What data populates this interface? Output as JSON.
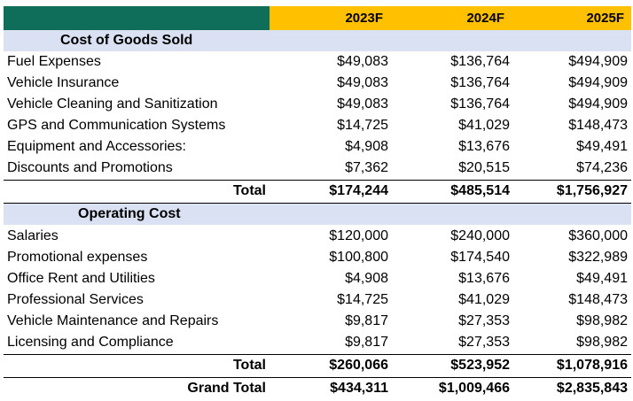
{
  "header": {
    "col1": "",
    "col2": "2023F",
    "col3": "2024F",
    "col4": "2025F"
  },
  "cogs": {
    "title": "Cost of Goods Sold",
    "rows": [
      {
        "label": "Fuel Expenses",
        "y2023": "$49,083",
        "y2024": "$136,764",
        "y2025": "$494,909"
      },
      {
        "label": "Vehicle Insurance",
        "y2023": "$49,083",
        "y2024": "$136,764",
        "y2025": "$494,909"
      },
      {
        "label": "Vehicle Cleaning and Sanitization",
        "y2023": "$49,083",
        "y2024": "$136,764",
        "y2025": "$494,909"
      },
      {
        "label": "GPS and Communication Systems",
        "y2023": "$14,725",
        "y2024": "$41,029",
        "y2025": "$148,473"
      },
      {
        "label": "Equipment and Accessories:",
        "y2023": "$4,908",
        "y2024": "$13,676",
        "y2025": "$49,491"
      },
      {
        "label": "Discounts and Promotions",
        "y2023": "$7,362",
        "y2024": "$20,515",
        "y2025": "$74,236"
      }
    ],
    "total": {
      "label": "Total",
      "y2023": "$174,244",
      "y2024": "$485,514",
      "y2025": "$1,756,927"
    }
  },
  "opex": {
    "title": "Operating Cost",
    "rows": [
      {
        "label": "Salaries",
        "y2023": "$120,000",
        "y2024": "$240,000",
        "y2025": "$360,000"
      },
      {
        "label": "Promotional expenses",
        "y2023": "$100,800",
        "y2024": "$174,540",
        "y2025": "$322,989"
      },
      {
        "label": "Office Rent and Utilities",
        "y2023": "$4,908",
        "y2024": "$13,676",
        "y2025": "$49,491"
      },
      {
        "label": "Professional Services",
        "y2023": "$14,725",
        "y2024": "$41,029",
        "y2025": "$148,473"
      },
      {
        "label": "Vehicle Maintenance and Repairs",
        "y2023": "$9,817",
        "y2024": "$27,353",
        "y2025": "$98,982"
      },
      {
        "label": "Licensing and Compliance",
        "y2023": "$9,817",
        "y2024": "$27,353",
        "y2025": "$98,982"
      }
    ],
    "total": {
      "label": "Total",
      "y2023": "$260,066",
      "y2024": "$523,952",
      "y2025": "$1,078,916"
    }
  },
  "grand_total": {
    "label": "Grand Total",
    "y2023": "$434,311",
    "y2024": "$1,009,466",
    "y2025": "$2,835,843"
  },
  "colors": {
    "header_green": "#0f6e5a",
    "header_yellow": "#ffc000",
    "section_blue": "#d9e1f2"
  }
}
